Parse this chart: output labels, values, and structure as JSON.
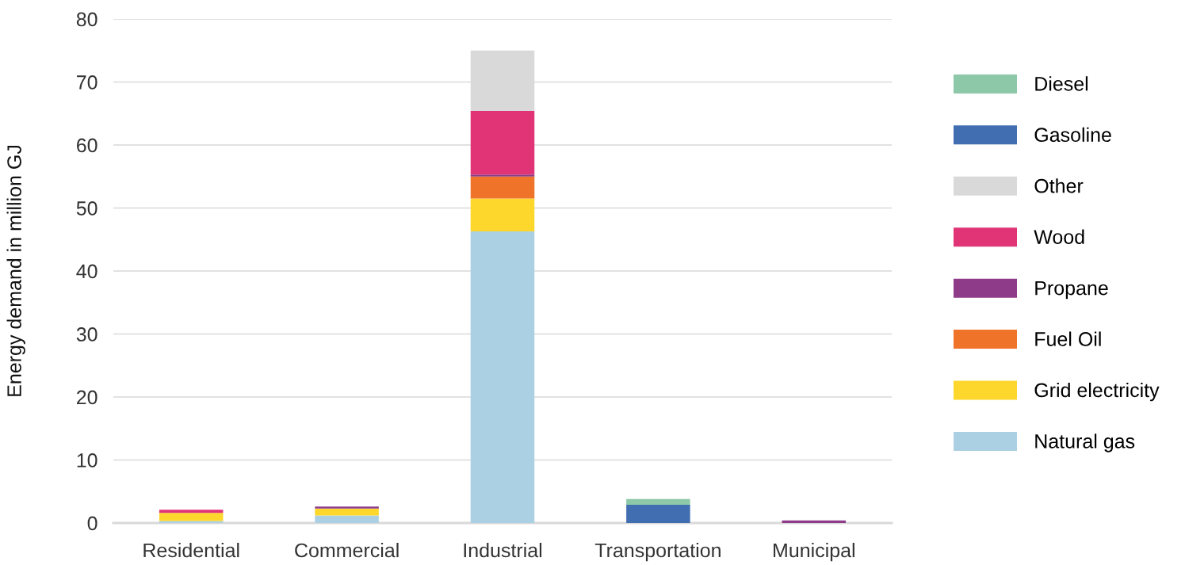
{
  "chart_data": {
    "type": "bar",
    "stacked": true,
    "ylabel": "Energy demand in million GJ",
    "categories": [
      "Residential",
      "Commercial",
      "Industrial",
      "Transportation",
      "Municipal"
    ],
    "series": [
      {
        "name": "Natural gas",
        "color": "#acd0e3",
        "values": [
          0.3,
          1.2,
          46.3,
          null,
          null
        ]
      },
      {
        "name": "Grid electricity",
        "color": "#fdd72b",
        "values": [
          1.3,
          1.1,
          5.2,
          null,
          null
        ]
      },
      {
        "name": "Fuel Oil",
        "color": "#ef742a",
        "values": [
          null,
          null,
          3.5,
          null,
          null
        ]
      },
      {
        "name": "Propane",
        "color": "#8e3b8a",
        "values": [
          null,
          0.3,
          0.3,
          null,
          0.4
        ]
      },
      {
        "name": "Wood",
        "color": "#e03476",
        "values": [
          0.5,
          null,
          10.1,
          null,
          null
        ]
      },
      {
        "name": "Other",
        "color": "#d9d9d9",
        "values": [
          null,
          null,
          9.6,
          null,
          null
        ]
      },
      {
        "name": "Gasoline",
        "color": "#416eb0",
        "values": [
          null,
          null,
          null,
          2.9,
          null
        ]
      },
      {
        "name": "Diesel",
        "color": "#8dc8a8",
        "values": [
          null,
          null,
          null,
          0.9,
          null
        ]
      }
    ],
    "ylim": [
      0,
      80
    ],
    "yticks": [
      0,
      10,
      20,
      30,
      40,
      50,
      60,
      70,
      80
    ],
    "grid": "y",
    "legend": "right"
  }
}
